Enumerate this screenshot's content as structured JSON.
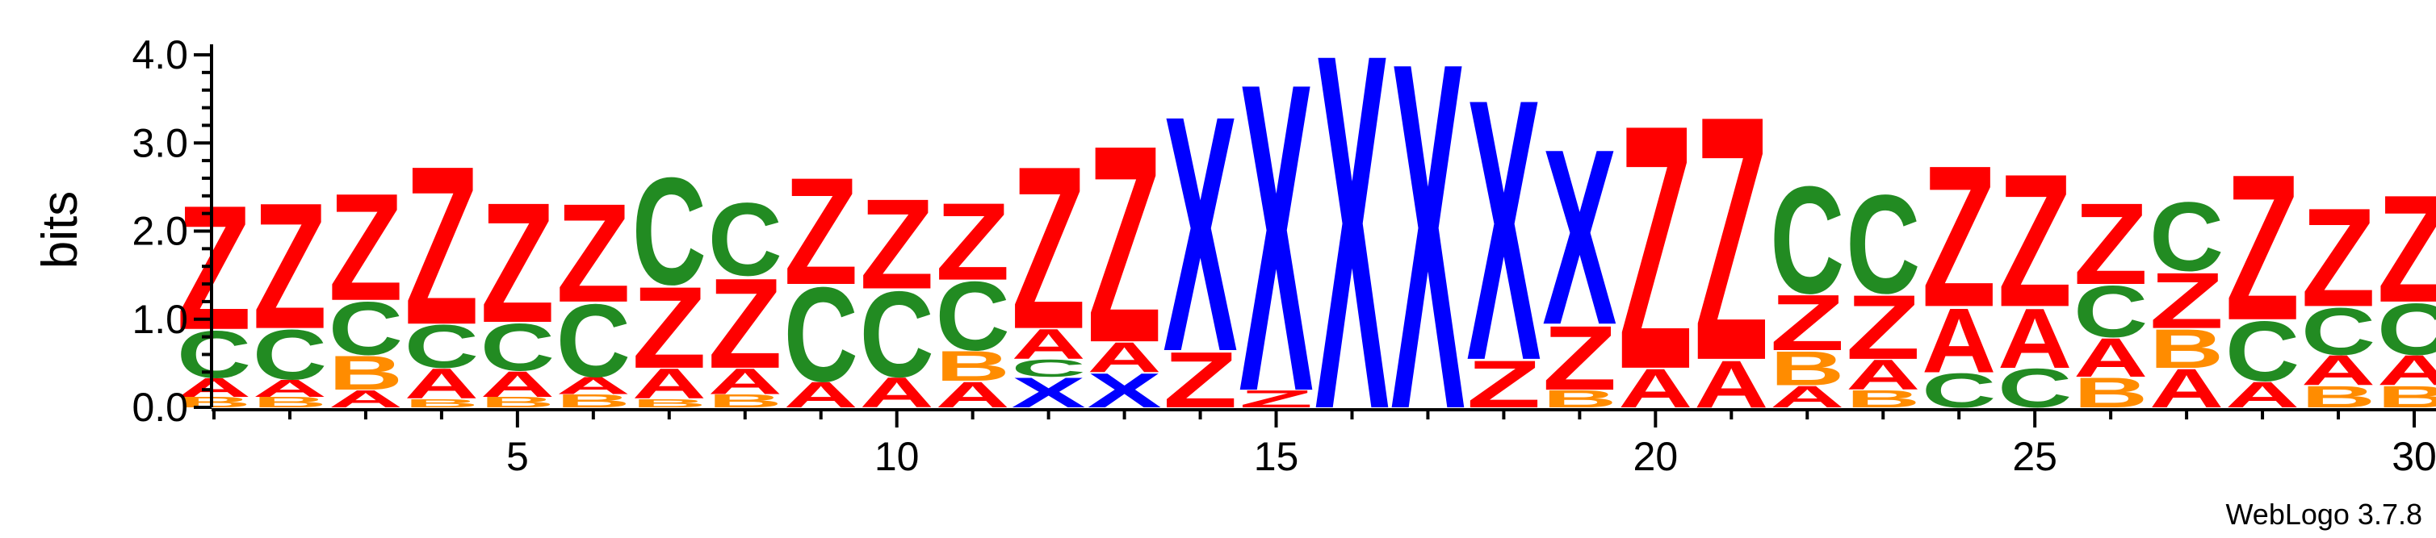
{
  "chart_data": {
    "type": "sequence-logo",
    "ylabel": "bits",
    "xlabel": "",
    "ylim": [
      0,
      4.15
    ],
    "xlim": [
      1,
      30
    ],
    "y_ticks": [
      "0.0",
      "1.0",
      "2.0",
      "3.0",
      "4.0"
    ],
    "x_ticks": [
      "5",
      "10",
      "15",
      "20",
      "25",
      "30"
    ],
    "colors": {
      "Z": "#ff0000",
      "X": "#0000ff",
      "C": "#228b22",
      "A": "#ff0000",
      "B": "#ff8c00"
    },
    "positions": [
      {
        "pos": 1,
        "stack": [
          [
            "B",
            0.12
          ],
          [
            "A",
            0.22
          ],
          [
            "C",
            0.55
          ],
          [
            "Z",
            1.45
          ]
        ]
      },
      {
        "pos": 2,
        "stack": [
          [
            "B",
            0.12
          ],
          [
            "A",
            0.2
          ],
          [
            "C",
            0.58
          ],
          [
            "Z",
            1.47
          ]
        ]
      },
      {
        "pos": 3,
        "stack": [
          [
            "A",
            0.2
          ],
          [
            "B",
            0.4
          ],
          [
            "C",
            0.62
          ],
          [
            "Z",
            1.25
          ]
        ]
      },
      {
        "pos": 4,
        "stack": [
          [
            "B",
            0.1
          ],
          [
            "A",
            0.35
          ],
          [
            "C",
            0.5
          ],
          [
            "Z",
            1.85
          ]
        ]
      },
      {
        "pos": 5,
        "stack": [
          [
            "B",
            0.12
          ],
          [
            "A",
            0.3
          ],
          [
            "C",
            0.55
          ],
          [
            "Z",
            1.4
          ]
        ]
      },
      {
        "pos": 6,
        "stack": [
          [
            "B",
            0.15
          ],
          [
            "A",
            0.2
          ],
          [
            "C",
            0.85
          ],
          [
            "Z",
            1.15
          ]
        ]
      },
      {
        "pos": 7,
        "stack": [
          [
            "B",
            0.1
          ],
          [
            "A",
            0.35
          ],
          [
            "Z",
            0.95
          ],
          [
            "C",
            1.25
          ]
        ]
      },
      {
        "pos": 8,
        "stack": [
          [
            "B",
            0.15
          ],
          [
            "A",
            0.3
          ],
          [
            "Z",
            1.05
          ],
          [
            "C",
            0.85
          ]
        ]
      },
      {
        "pos": 9,
        "stack": [
          [
            "A",
            0.3
          ],
          [
            "C",
            1.1
          ],
          [
            "Z",
            1.25
          ]
        ]
      },
      {
        "pos": 10,
        "stack": [
          [
            "A",
            0.35
          ],
          [
            "C",
            1.0
          ],
          [
            "Z",
            1.05
          ]
        ]
      },
      {
        "pos": 11,
        "stack": [
          [
            "A",
            0.3
          ],
          [
            "B",
            0.35
          ],
          [
            "C",
            0.8
          ],
          [
            "Z",
            0.9
          ]
        ]
      },
      {
        "pos": 12,
        "stack": [
          [
            "X",
            0.35
          ],
          [
            "C",
            0.2
          ],
          [
            "A",
            0.35
          ],
          [
            "Z",
            1.9
          ]
        ]
      },
      {
        "pos": 13,
        "stack": [
          [
            "X",
            0.4
          ],
          [
            "A",
            0.35
          ],
          [
            "Z",
            2.3
          ]
        ]
      },
      {
        "pos": 14,
        "stack": [
          [
            "Z",
            0.65
          ],
          [
            "X",
            2.75
          ]
        ]
      },
      {
        "pos": 15,
        "stack": [
          [
            "Z",
            0.2
          ],
          [
            "X",
            3.6
          ]
        ]
      },
      {
        "pos": 16,
        "stack": [
          [
            "X",
            4.15
          ]
        ]
      },
      {
        "pos": 17,
        "stack": [
          [
            "X",
            4.05
          ]
        ]
      },
      {
        "pos": 18,
        "stack": [
          [
            "Z",
            0.55
          ],
          [
            "X",
            3.05
          ]
        ]
      },
      {
        "pos": 19,
        "stack": [
          [
            "B",
            0.2
          ],
          [
            "Z",
            0.75
          ],
          [
            "X",
            2.05
          ]
        ]
      },
      {
        "pos": 20,
        "stack": [
          [
            "A",
            0.45
          ],
          [
            "Z",
            2.85
          ]
        ]
      },
      {
        "pos": 21,
        "stack": [
          [
            "A",
            0.55
          ],
          [
            "Z",
            2.85
          ]
        ]
      },
      {
        "pos": 22,
        "stack": [
          [
            "A",
            0.25
          ],
          [
            "B",
            0.4
          ],
          [
            "Z",
            0.65
          ],
          [
            "C",
            1.25
          ]
        ]
      },
      {
        "pos": 23,
        "stack": [
          [
            "B",
            0.2
          ],
          [
            "A",
            0.35
          ],
          [
            "Z",
            0.75
          ],
          [
            "C",
            1.15
          ]
        ]
      },
      {
        "pos": 24,
        "stack": [
          [
            "C",
            0.4
          ],
          [
            "A",
            0.75
          ],
          [
            "Z",
            1.65
          ]
        ]
      },
      {
        "pos": 25,
        "stack": [
          [
            "C",
            0.45
          ],
          [
            "A",
            0.7
          ],
          [
            "Z",
            1.55
          ]
        ]
      },
      {
        "pos": 26,
        "stack": [
          [
            "B",
            0.35
          ],
          [
            "A",
            0.45
          ],
          [
            "C",
            0.6
          ],
          [
            "Z",
            0.95
          ]
        ]
      },
      {
        "pos": 27,
        "stack": [
          [
            "A",
            0.45
          ],
          [
            "B",
            0.45
          ],
          [
            "Z",
            0.65
          ],
          [
            "C",
            0.8
          ]
        ]
      },
      {
        "pos": 28,
        "stack": [
          [
            "A",
            0.3
          ],
          [
            "C",
            0.7
          ],
          [
            "Z",
            1.7
          ]
        ]
      },
      {
        "pos": 29,
        "stack": [
          [
            "B",
            0.25
          ],
          [
            "A",
            0.35
          ],
          [
            "C",
            0.55
          ],
          [
            "Z",
            1.15
          ]
        ]
      },
      {
        "pos": 30,
        "stack": [
          [
            "B",
            0.25
          ],
          [
            "A",
            0.35
          ],
          [
            "C",
            0.6
          ],
          [
            "Z",
            1.25
          ]
        ]
      }
    ]
  },
  "footer": {
    "version_label": "WebLogo 3.7.8"
  }
}
